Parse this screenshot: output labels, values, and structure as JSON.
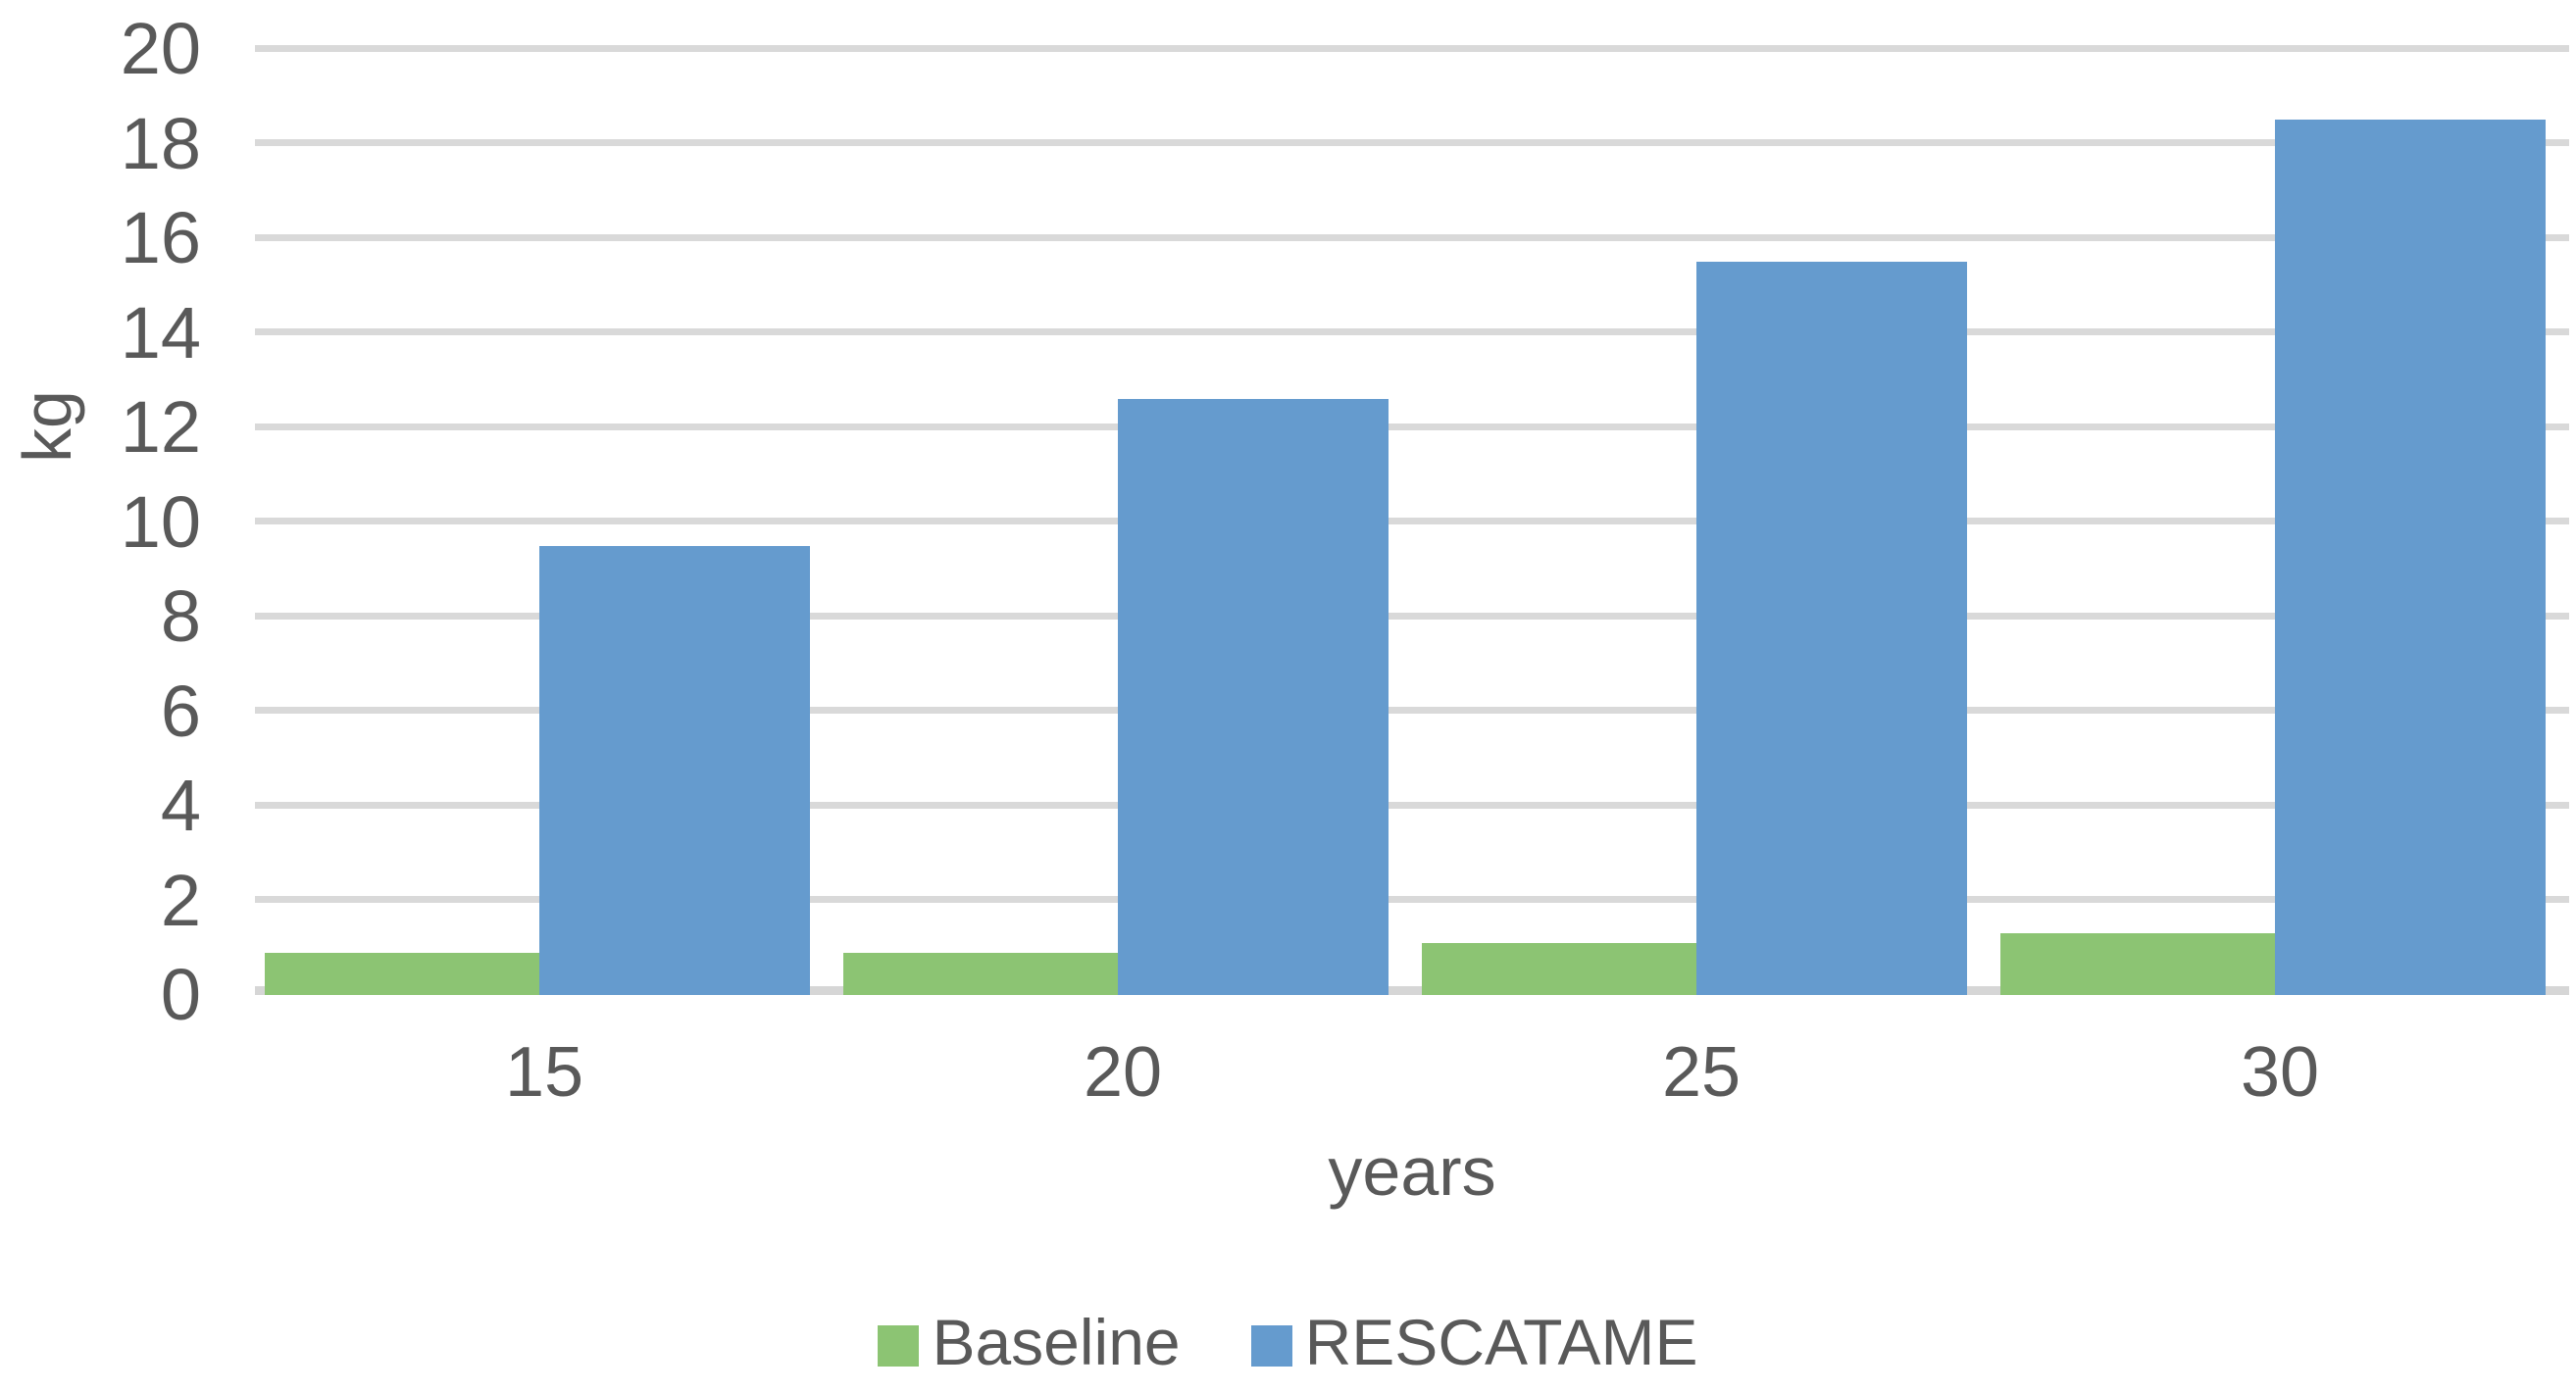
{
  "chart_data": {
    "type": "bar",
    "categories": [
      "15",
      "20",
      "25",
      "30"
    ],
    "series": [
      {
        "name": "Baseline",
        "color": "#8cc473",
        "values": [
          0.9,
          0.9,
          1.1,
          1.3
        ]
      },
      {
        "name": "RESCATAME",
        "color": "#659bce",
        "values": [
          9.5,
          12.6,
          15.5,
          18.5
        ]
      }
    ],
    "title": "",
    "xlabel": "years",
    "ylabel": "kg",
    "ylim": [
      0,
      20
    ],
    "y_tick_step": 2,
    "y_tick_labels": [
      "0",
      "2",
      "4",
      "6",
      "8",
      "10",
      "12",
      "14",
      "16",
      "18",
      "20"
    ],
    "grid": true,
    "legend_position": "bottom"
  },
  "colors": {
    "axis_text": "#595959",
    "gridline": "#d9d9d9",
    "baseline_color": "#8cc473",
    "rescatame_color": "#659bce"
  }
}
